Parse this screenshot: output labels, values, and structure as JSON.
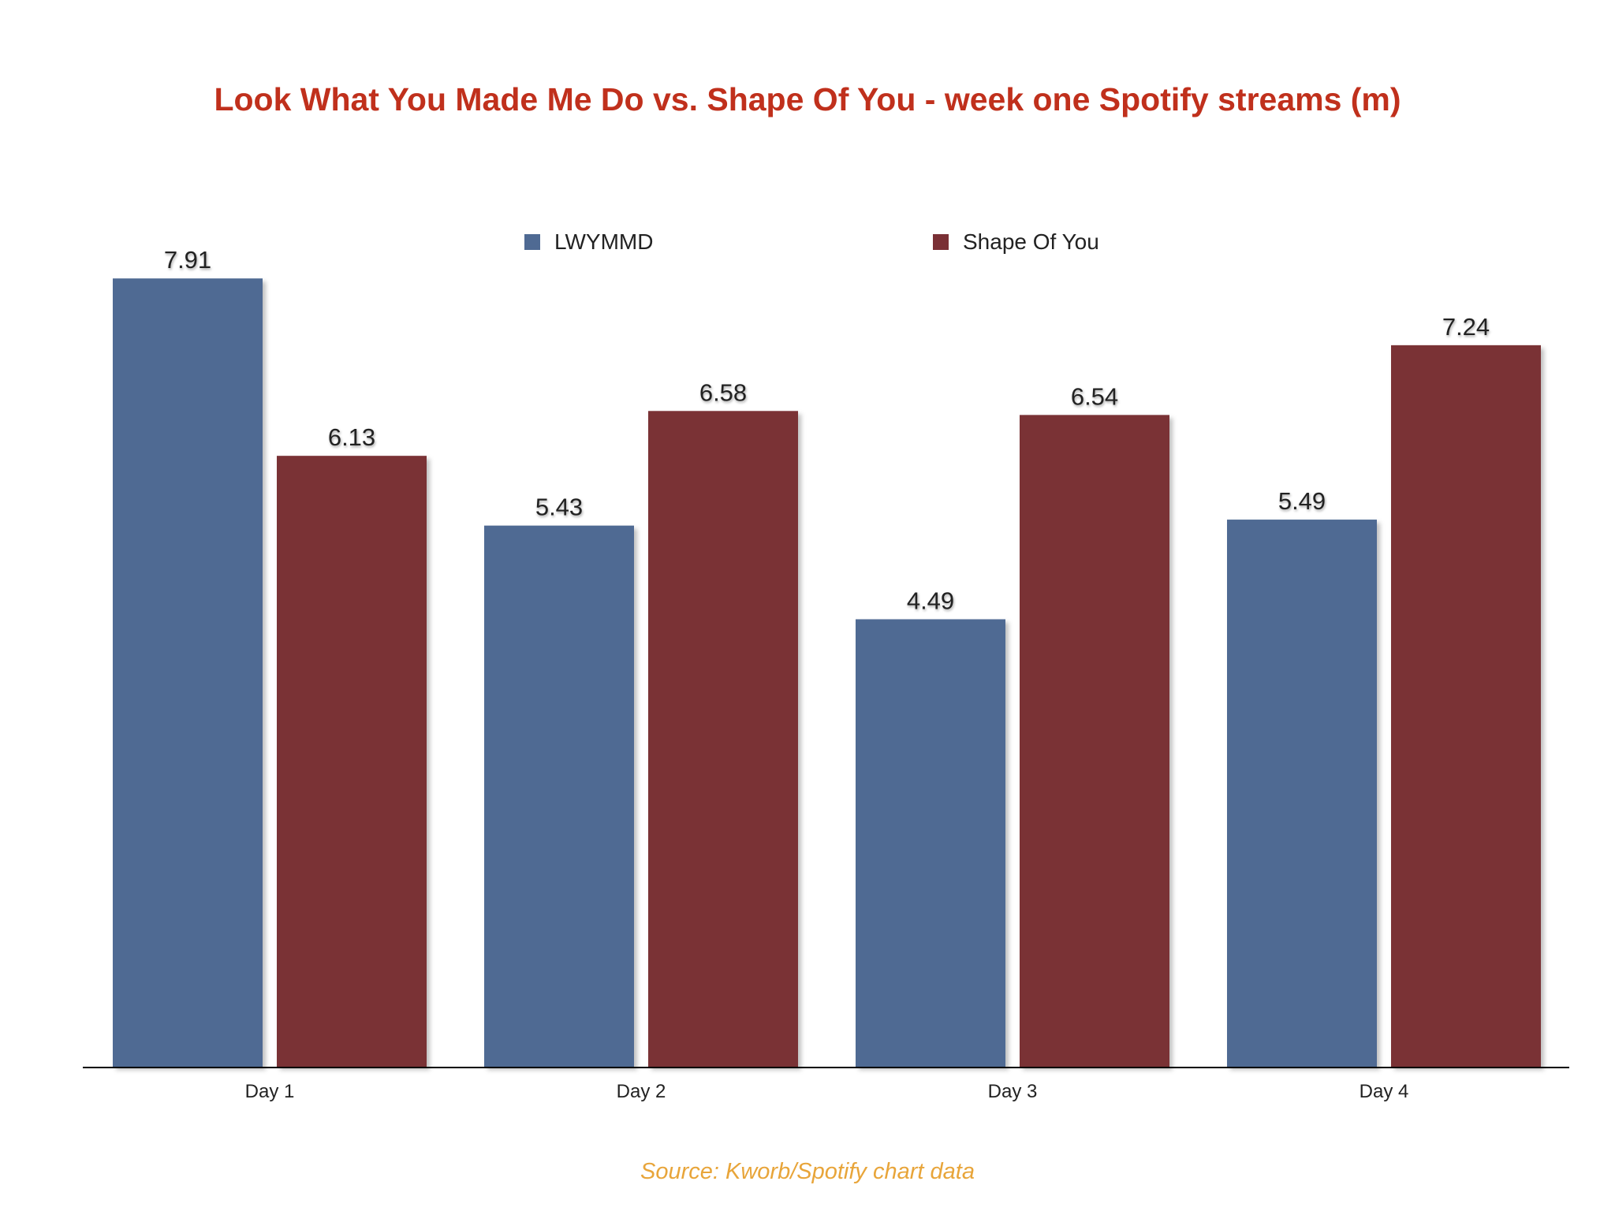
{
  "colors": {
    "title": "#c0301c",
    "source": "#e8a53a",
    "lwymmd": "#4f6a93",
    "shape_of_you": "#7a3035",
    "axis": "#000000",
    "text": "#222222"
  },
  "chart_data": {
    "type": "bar",
    "title": "Look What You Made Me Do vs. Shape Of You - week one Spotify streams (m)",
    "source": "Source: Kworb/Spotify chart data",
    "categories": [
      "Day 1",
      "Day 2",
      "Day 3",
      "Day 4"
    ],
    "series": [
      {
        "name": "LWYMMD",
        "color": "#4f6a93",
        "values": [
          7.91,
          5.43,
          4.49,
          5.49
        ]
      },
      {
        "name": "Shape Of You",
        "color": "#7a3035",
        "values": [
          6.13,
          6.58,
          6.54,
          7.24
        ]
      }
    ],
    "data_labels": [
      [
        "7.91",
        "5.43",
        "4.49",
        "5.49"
      ],
      [
        "6.13",
        "6.58",
        "6.54",
        "7.24"
      ]
    ],
    "ylim": [
      0,
      8
    ],
    "grid": false,
    "legend_position": "top"
  }
}
